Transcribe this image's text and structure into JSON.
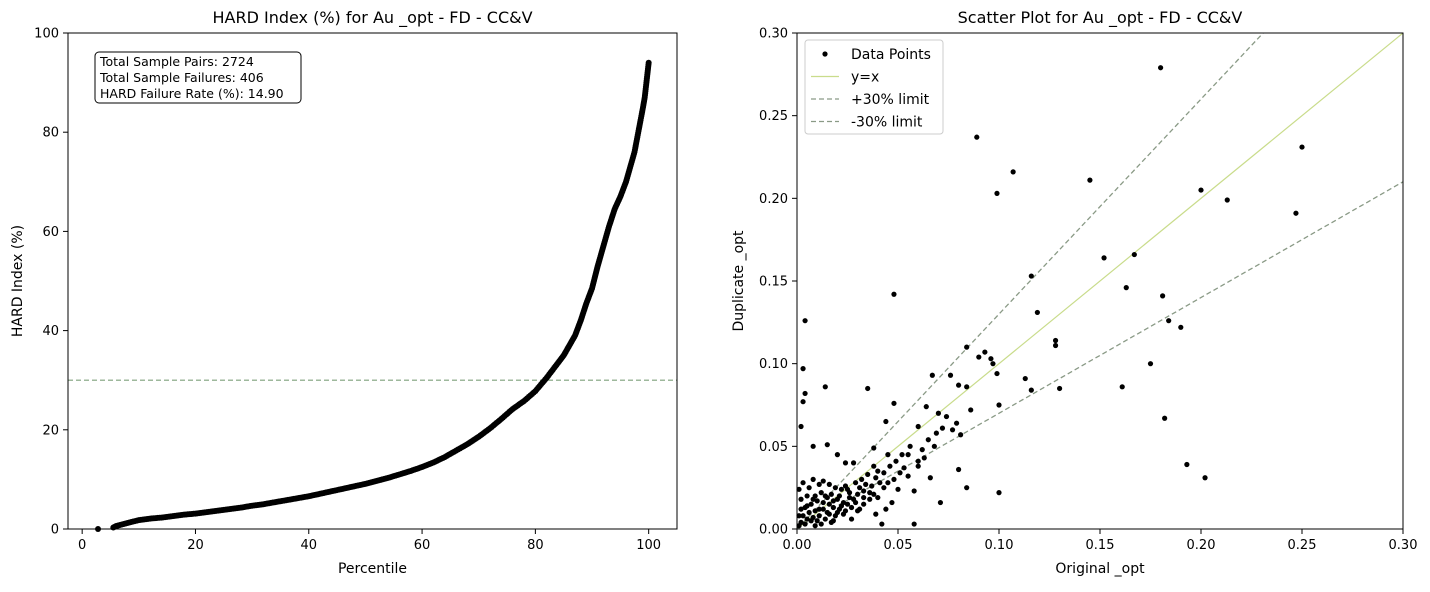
{
  "chart_data": [
    {
      "type": "line",
      "title": "HARD Index (%) for Au _opt - FD - CC&V",
      "xlabel": "Percentile",
      "ylabel": "HARD Index (%)",
      "xlim": [
        -2.5,
        105
      ],
      "ylim": [
        0,
        100
      ],
      "xticks": [
        0,
        20,
        40,
        60,
        80,
        100
      ],
      "yticks": [
        0,
        20,
        40,
        60,
        80,
        100
      ],
      "threshold": 30,
      "annotation": [
        "Total Sample Pairs: 2724",
        "Total Sample Failures: 406",
        "HARD Failure Rate (%): 14.90"
      ],
      "series": [
        {
          "marker": "circle",
          "color": "#000000",
          "x": [
            2.8,
            5.5,
            6,
            7,
            8,
            9,
            10,
            12,
            14,
            16,
            18,
            20,
            22,
            24,
            26,
            28,
            30,
            32,
            34,
            36,
            38,
            40,
            42,
            44,
            46,
            48,
            50,
            52,
            54,
            56,
            58,
            60,
            62,
            64,
            66,
            68,
            70,
            72,
            74,
            76,
            78,
            80,
            82,
            84,
            85,
            86,
            87,
            88,
            89,
            90,
            91,
            92,
            93,
            94,
            95,
            96,
            96.5,
            97,
            97.5,
            98,
            98.5,
            99,
            99.3,
            99.6,
            99.8,
            100
          ],
          "y": [
            0,
            0.3,
            0.6,
            0.9,
            1.2,
            1.5,
            1.8,
            2.1,
            2.3,
            2.6,
            2.9,
            3.1,
            3.4,
            3.7,
            4,
            4.3,
            4.7,
            5,
            5.4,
            5.8,
            6.2,
            6.6,
            7.1,
            7.6,
            8.1,
            8.6,
            9.1,
            9.7,
            10.3,
            11,
            11.7,
            12.5,
            13.4,
            14.5,
            15.8,
            17.1,
            18.6,
            20.3,
            22.2,
            24.2,
            25.8,
            27.8,
            30.5,
            33.5,
            35,
            37,
            39,
            42,
            45.5,
            48.5,
            53,
            57,
            61,
            64.5,
            67,
            70,
            72,
            74,
            76,
            79,
            82,
            85,
            87,
            90,
            92,
            94
          ]
        }
      ]
    },
    {
      "type": "scatter",
      "title": "Scatter Plot for Au _opt - FD - CC&V",
      "xlabel": "Original _opt",
      "ylabel": "Duplicate _opt",
      "xlim": [
        0,
        0.3
      ],
      "ylim": [
        0,
        0.3
      ],
      "xticks": [
        0.0,
        0.05,
        0.1,
        0.15,
        0.2,
        0.25,
        0.3
      ],
      "yticks": [
        0.0,
        0.05,
        0.1,
        0.15,
        0.2,
        0.25,
        0.3
      ],
      "tick_labels": [
        "0.00",
        "0.05",
        "0.10",
        "0.15",
        "0.20",
        "0.25",
        "0.30"
      ],
      "legend_placement": "top-left",
      "legend": [
        {
          "label": "Data Points",
          "style": "dot",
          "color": "#000000"
        },
        {
          "label": "y=x",
          "style": "solid",
          "color": "#c9dc8b"
        },
        {
          "label": "+30% limit",
          "style": "dashed",
          "color": "#8a9a86"
        },
        {
          "label": "-30% limit",
          "style": "dashed",
          "color": "#8a9a86"
        }
      ],
      "lines": [
        {
          "name": "y=x",
          "slope": 1.0,
          "color": "#c9dc8b",
          "dash": false
        },
        {
          "name": "+30% limit",
          "slope": 1.3,
          "color": "#8a9a86",
          "dash": true
        },
        {
          "name": "-30% limit",
          "slope": 0.7,
          "color": "#8a9a86",
          "dash": true
        }
      ],
      "points": [
        [
          0.18,
          0.279
        ],
        [
          0.089,
          0.237
        ],
        [
          0.25,
          0.231
        ],
        [
          0.107,
          0.216
        ],
        [
          0.145,
          0.211
        ],
        [
          0.2,
          0.205
        ],
        [
          0.099,
          0.203
        ],
        [
          0.213,
          0.199
        ],
        [
          0.247,
          0.191
        ],
        [
          0.116,
          0.153
        ],
        [
          0.152,
          0.164
        ],
        [
          0.167,
          0.166
        ],
        [
          0.163,
          0.146
        ],
        [
          0.048,
          0.142
        ],
        [
          0.181,
          0.141
        ],
        [
          0.119,
          0.131
        ],
        [
          0.004,
          0.126
        ],
        [
          0.184,
          0.126
        ],
        [
          0.19,
          0.122
        ],
        [
          0.128,
          0.114
        ],
        [
          0.128,
          0.111
        ],
        [
          0.084,
          0.11
        ],
        [
          0.093,
          0.107
        ],
        [
          0.09,
          0.104
        ],
        [
          0.096,
          0.103
        ],
        [
          0.097,
          0.1
        ],
        [
          0.175,
          0.1
        ],
        [
          0.003,
          0.097
        ],
        [
          0.099,
          0.094
        ],
        [
          0.067,
          0.093
        ],
        [
          0.076,
          0.093
        ],
        [
          0.113,
          0.091
        ],
        [
          0.08,
          0.087
        ],
        [
          0.014,
          0.086
        ],
        [
          0.161,
          0.086
        ],
        [
          0.084,
          0.086
        ],
        [
          0.035,
          0.085
        ],
        [
          0.13,
          0.085
        ],
        [
          0.004,
          0.082
        ],
        [
          0.116,
          0.084
        ],
        [
          0.003,
          0.077
        ],
        [
          0.048,
          0.076
        ],
        [
          0.1,
          0.075
        ],
        [
          0.064,
          0.074
        ],
        [
          0.182,
          0.067
        ],
        [
          0.002,
          0.062
        ],
        [
          0.044,
          0.065
        ],
        [
          0.06,
          0.062
        ],
        [
          0.07,
          0.07
        ],
        [
          0.074,
          0.068
        ],
        [
          0.015,
          0.051
        ],
        [
          0.038,
          0.049
        ],
        [
          0.079,
          0.064
        ],
        [
          0.081,
          0.057
        ],
        [
          0.056,
          0.05
        ],
        [
          0.008,
          0.05
        ],
        [
          0.045,
          0.045
        ],
        [
          0.052,
          0.045
        ],
        [
          0.02,
          0.045
        ],
        [
          0.028,
          0.04
        ],
        [
          0.024,
          0.04
        ],
        [
          0.038,
          0.038
        ],
        [
          0.193,
          0.039
        ],
        [
          0.08,
          0.036
        ],
        [
          0.06,
          0.038
        ],
        [
          0.202,
          0.031
        ],
        [
          0.066,
          0.031
        ],
        [
          0.1,
          0.022
        ],
        [
          0.008,
          0.03
        ],
        [
          0.013,
          0.029
        ],
        [
          0.016,
          0.027
        ],
        [
          0.019,
          0.025
        ],
        [
          0.022,
          0.024
        ],
        [
          0.025,
          0.024
        ],
        [
          0.029,
          0.028
        ],
        [
          0.032,
          0.03
        ],
        [
          0.035,
          0.033
        ],
        [
          0.04,
          0.035
        ],
        [
          0.041,
          0.028
        ],
        [
          0.036,
          0.022
        ],
        [
          0.05,
          0.024
        ],
        [
          0.058,
          0.023
        ],
        [
          0.071,
          0.016
        ],
        [
          0.084,
          0.025
        ],
        [
          0.047,
          0.016
        ],
        [
          0.044,
          0.012
        ],
        [
          0.042,
          0.003
        ],
        [
          0.058,
          0.003
        ],
        [
          0.039,
          0.009
        ],
        [
          0.033,
          0.015
        ],
        [
          0.03,
          0.011
        ],
        [
          0.025,
          0.015
        ],
        [
          0.02,
          0.018
        ],
        [
          0.018,
          0.013
        ],
        [
          0.015,
          0.01
        ],
        [
          0.013,
          0.016
        ],
        [
          0.011,
          0.012
        ],
        [
          0.009,
          0.02
        ],
        [
          0.007,
          0.015
        ],
        [
          0.006,
          0.01
        ],
        [
          0.005,
          0.006
        ],
        [
          0.004,
          0.013
        ],
        [
          0.003,
          0.008
        ],
        [
          0.002,
          0.004
        ],
        [
          0.001,
          0.002
        ],
        [
          0.002,
          0.018
        ],
        [
          0.001,
          0.024
        ],
        [
          0.003,
          0.028
        ],
        [
          0.005,
          0.02
        ],
        [
          0.006,
          0.025
        ],
        [
          0.008,
          0.007
        ],
        [
          0.01,
          0.005
        ],
        [
          0.012,
          0.003
        ],
        [
          0.014,
          0.006
        ],
        [
          0.017,
          0.004
        ],
        [
          0.019,
          0.008
        ],
        [
          0.021,
          0.012
        ],
        [
          0.023,
          0.009
        ],
        [
          0.026,
          0.019
        ],
        [
          0.027,
          0.006
        ],
        [
          0.009,
          0.011
        ],
        [
          0.01,
          0.017
        ],
        [
          0.012,
          0.022
        ],
        [
          0.011,
          0.027
        ],
        [
          0.014,
          0.02
        ],
        [
          0.016,
          0.015
        ],
        [
          0.017,
          0.021
        ],
        [
          0.018,
          0.017
        ],
        [
          0.021,
          0.02
        ],
        [
          0.023,
          0.016
        ],
        [
          0.024,
          0.026
        ],
        [
          0.026,
          0.022
        ],
        [
          0.028,
          0.018
        ],
        [
          0.03,
          0.021
        ],
        [
          0.031,
          0.025
        ],
        [
          0.033,
          0.019
        ],
        [
          0.034,
          0.027
        ],
        [
          0.037,
          0.026
        ],
        [
          0.039,
          0.031
        ],
        [
          0.043,
          0.034
        ],
        [
          0.046,
          0.038
        ],
        [
          0.049,
          0.041
        ],
        [
          0.053,
          0.037
        ],
        [
          0.055,
          0.045
        ],
        [
          0.062,
          0.048
        ],
        [
          0.065,
          0.054
        ],
        [
          0.069,
          0.058
        ],
        [
          0.072,
          0.061
        ],
        [
          0.077,
          0.06
        ],
        [
          0.086,
          0.072
        ],
        [
          0.001,
          0.008
        ],
        [
          0.002,
          0.012
        ],
        [
          0.004,
          0.003
        ],
        [
          0.005,
          0.014
        ],
        [
          0.007,
          0.005
        ],
        [
          0.008,
          0.018
        ],
        [
          0.009,
          0.002
        ],
        [
          0.011,
          0.008
        ],
        [
          0.013,
          0.012
        ],
        [
          0.015,
          0.019
        ],
        [
          0.016,
          0.009
        ],
        [
          0.018,
          0.005
        ],
        [
          0.02,
          0.01
        ],
        [
          0.022,
          0.014
        ],
        [
          0.024,
          0.011
        ],
        [
          0.027,
          0.013
        ],
        [
          0.029,
          0.016
        ],
        [
          0.031,
          0.012
        ],
        [
          0.033,
          0.023
        ],
        [
          0.036,
          0.018
        ],
        [
          0.038,
          0.021
        ],
        [
          0.04,
          0.019
        ],
        [
          0.043,
          0.025
        ],
        [
          0.045,
          0.028
        ],
        [
          0.048,
          0.03
        ],
        [
          0.051,
          0.034
        ],
        [
          0.055,
          0.032
        ],
        [
          0.06,
          0.041
        ],
        [
          0.063,
          0.043
        ],
        [
          0.068,
          0.05
        ]
      ]
    }
  ]
}
